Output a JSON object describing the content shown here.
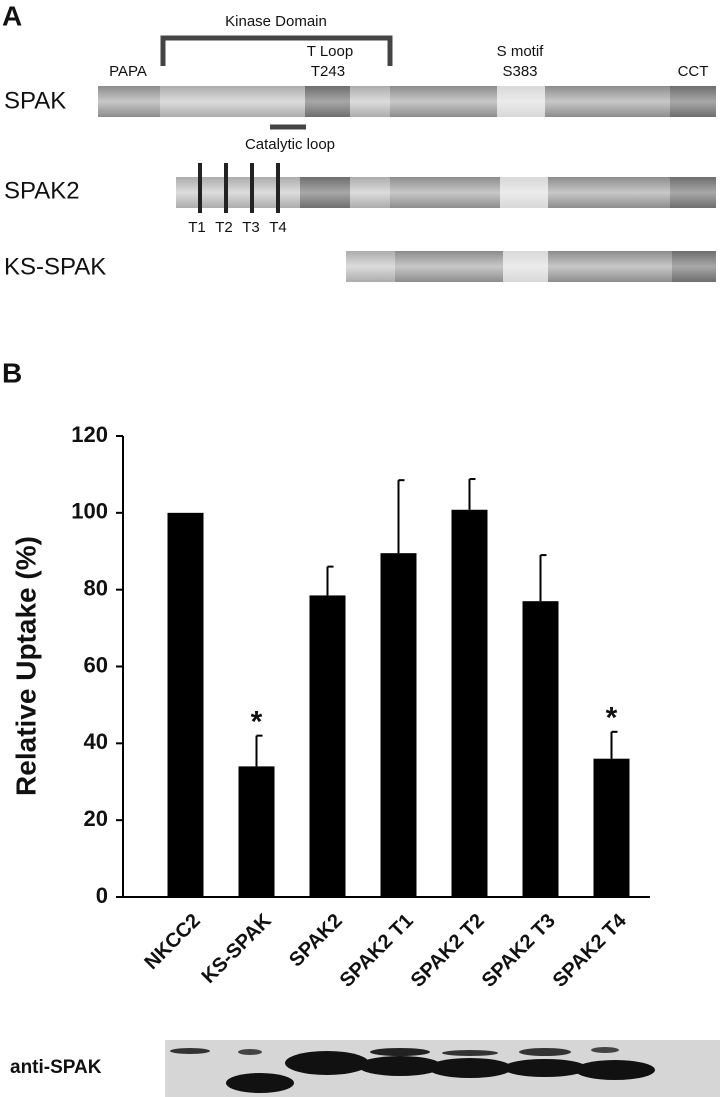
{
  "panel_a": {
    "label": "A",
    "kinase_domain": "Kinase Domain",
    "papa": "PAPA",
    "t_loop": "T Loop",
    "t243": "T243",
    "s_motif": "S motif",
    "s383": "S383",
    "cct": "CCT",
    "catalytic_loop": "Catalytic loop",
    "proteins": [
      "SPAK",
      "SPAK2",
      "KS-SPAK"
    ],
    "sites": [
      "T1",
      "T2",
      "T3",
      "T4"
    ]
  },
  "chart_data": {
    "type": "bar",
    "panel_label": "B",
    "ylabel": "Relative Uptake (%)",
    "categories": [
      "NKCC2",
      "KS-SPAK",
      "SPAK2",
      "SPAK2 T1",
      "SPAK2 T2",
      "SPAK2 T3",
      "SPAK2 T4"
    ],
    "values": [
      100,
      34,
      78.5,
      89.5,
      100.8,
      77,
      36
    ],
    "errors": [
      null,
      8,
      7.5,
      19,
      8,
      12,
      7
    ],
    "markers": [
      null,
      "*",
      null,
      null,
      null,
      null,
      "*"
    ],
    "color": "#000000",
    "ylim": [
      0,
      120
    ],
    "yticks": [
      0,
      20,
      40,
      60,
      80,
      100,
      120
    ],
    "blot_label": "anti-SPAK"
  }
}
